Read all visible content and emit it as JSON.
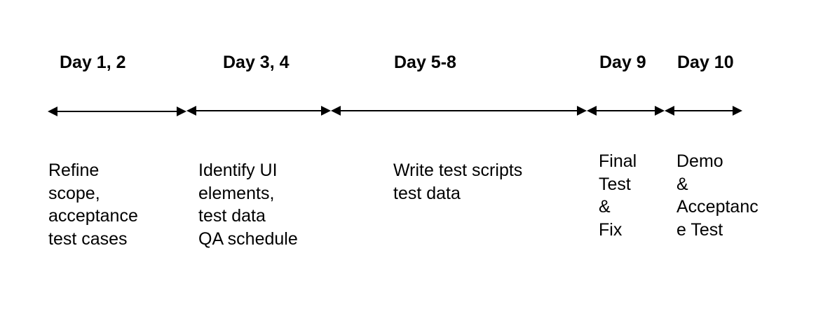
{
  "phases": [
    {
      "label": "Day 1, 2",
      "description": [
        "Refine",
        "scope,",
        "acceptance",
        "test cases"
      ]
    },
    {
      "label": "Day 3, 4",
      "description": [
        "Identify UI",
        "elements,",
        "test data",
        "QA schedule"
      ]
    },
    {
      "label": "Day 5-8",
      "description": [
        "Write test scripts",
        "test data"
      ]
    },
    {
      "label": "Day 9",
      "description": [
        "Final",
        "Test",
        "&",
        "Fix"
      ]
    },
    {
      "label": "Day 10",
      "description": [
        "Demo",
        "&",
        "Acceptanc",
        "e Test"
      ]
    }
  ]
}
